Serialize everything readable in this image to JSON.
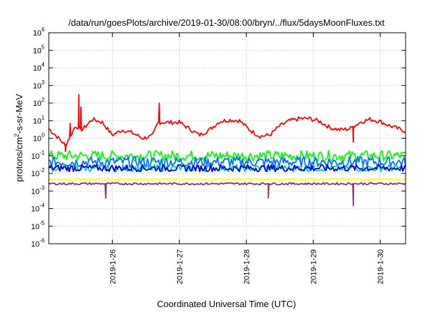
{
  "chart_data": {
    "type": "line",
    "title": "/data/run/goesPlots/archive/2019-01-30/08:00/bryn/../flux/5daysMoonFluxes.txt",
    "xlabel": "Coordinated Universal Time (UTC)",
    "ylabel": "protons/cm²-s-sr-MeV",
    "ylabel_parts": {
      "pre": "protons/cm",
      "sup": "2",
      "post": "-s-sr-MeV"
    },
    "yscale": "log",
    "ylim_exponents": [
      -6,
      6
    ],
    "y_tick_exponents": [
      -6,
      -5,
      -4,
      -3,
      -2,
      -1,
      0,
      1,
      2,
      3,
      4,
      5,
      6
    ],
    "y_tick_base": "10",
    "xlim_days": [
      25.05,
      30.38
    ],
    "x_tick_labels": [
      "2019-1-26",
      "2019-1-27",
      "2019-1-28",
      "2019-1-29",
      "2019-1-30"
    ],
    "x_tick_days": [
      26,
      27,
      28,
      29,
      30
    ],
    "grid": true,
    "series": [
      {
        "color": "#ff0000",
        "baseline": [
          [
            25.05,
            3.5
          ],
          [
            25.15,
            1.5
          ],
          [
            25.3,
            0.4
          ],
          [
            25.45,
            5
          ],
          [
            25.55,
            3
          ],
          [
            25.7,
            12
          ],
          [
            25.85,
            8
          ],
          [
            26.0,
            1.5
          ],
          [
            26.15,
            3
          ],
          [
            26.3,
            2
          ],
          [
            26.45,
            1
          ],
          [
            26.6,
            1.3
          ],
          [
            26.68,
            8
          ],
          [
            26.85,
            8
          ],
          [
            27.0,
            8
          ],
          [
            27.15,
            3.5
          ],
          [
            27.3,
            1.5
          ],
          [
            27.45,
            3
          ],
          [
            27.6,
            9
          ],
          [
            27.75,
            11
          ],
          [
            27.9,
            10
          ],
          [
            28.05,
            3
          ],
          [
            28.2,
            1.3
          ],
          [
            28.35,
            1.5
          ],
          [
            28.5,
            5
          ],
          [
            28.65,
            10
          ],
          [
            28.8,
            13
          ],
          [
            28.95,
            13
          ],
          [
            29.1,
            9
          ],
          [
            29.25,
            4
          ],
          [
            29.4,
            3
          ],
          [
            29.55,
            3.5
          ],
          [
            29.7,
            8
          ],
          [
            29.85,
            12
          ],
          [
            30.0,
            9
          ],
          [
            30.15,
            5
          ],
          [
            30.38,
            2.5
          ]
        ],
        "spikes": [
          [
            25.3,
            0.18
          ],
          [
            25.37,
            7
          ],
          [
            25.5,
            300
          ],
          [
            25.53,
            60
          ],
          [
            26.7,
            100
          ],
          [
            29.6,
            0.6
          ]
        ],
        "noise": 0.12
      },
      {
        "color": "#00ff00",
        "level": 0.1,
        "noise": 0.3
      },
      {
        "color": "#0070ff",
        "level": 0.045,
        "noise": 0.3
      },
      {
        "color": "#00c8d0",
        "level": 0.02,
        "noise": 0.2
      },
      {
        "color": "#0000c8",
        "level": 0.02,
        "noise": 0.2
      },
      {
        "color": "#ffff00",
        "level": 0.0045,
        "noise": 0.04
      },
      {
        "color": "#8b2b7a",
        "level": 0.0026,
        "noise": 0.06,
        "dips": [
          [
            25.9,
            0.0004
          ],
          [
            28.33,
            0.0004
          ],
          [
            29.6,
            0.00015
          ]
        ]
      }
    ]
  }
}
